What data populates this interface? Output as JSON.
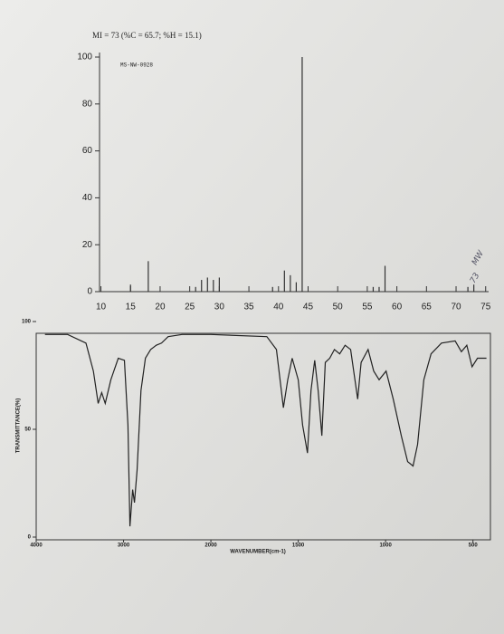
{
  "chart_data": [
    {
      "type": "bar",
      "title": "MI = 73 (%C = 65.7; %H = 15.1)",
      "subtitle": "MS-NW-0928",
      "annotations": [
        "MW",
        "73"
      ],
      "x": [
        15,
        18,
        26,
        27,
        28,
        29,
        30,
        39,
        41,
        42,
        43,
        44,
        56,
        57,
        58,
        72,
        73
      ],
      "values": [
        3,
        13,
        2,
        5,
        6,
        5,
        6,
        2,
        9,
        7,
        4,
        100,
        2,
        2,
        11,
        2,
        3
      ],
      "color": "#333333",
      "xlim": [
        9,
        75.5
      ],
      "xticks": [
        10,
        15,
        20,
        25,
        30,
        35,
        40,
        45,
        50,
        55,
        60,
        65,
        70,
        75
      ],
      "ylim": [
        0,
        100
      ],
      "yticks": [
        0,
        20,
        40,
        60,
        80,
        100
      ]
    },
    {
      "type": "line",
      "x_label": "WAVENUMBER(cm-1)",
      "y_label": "TRANSMITTANCE(%)",
      "x": [
        3900,
        3640,
        3430,
        3345,
        3290,
        3250,
        3210,
        3145,
        3060,
        2990,
        2950,
        2927,
        2896,
        2875,
        2845,
        2800,
        2750,
        2690,
        2625,
        2565,
        2490,
        2330,
        2000,
        1680,
        1625,
        1585,
        1560,
        1535,
        1500,
        1475,
        1447,
        1427,
        1406,
        1386,
        1365,
        1345,
        1320,
        1293,
        1263,
        1232,
        1200,
        1160,
        1140,
        1100,
        1068,
        1037,
        997,
        956,
        910,
        874,
        843,
        817,
        781,
        740,
        680,
        602,
        566,
        535,
        505,
        474,
        423
      ],
      "values": [
        94,
        94,
        90,
        77,
        62,
        67,
        62,
        73,
        83,
        82,
        52,
        5,
        22,
        16,
        31,
        68,
        83,
        87,
        89,
        90,
        93,
        94,
        94,
        93,
        87,
        60,
        73,
        83,
        73,
        52,
        39,
        68,
        82,
        68,
        47,
        81,
        83,
        87,
        85,
        89,
        87,
        64,
        81,
        87,
        77,
        73,
        77,
        64,
        47,
        35,
        33,
        43,
        73,
        85,
        90,
        91,
        86,
        89,
        79,
        83,
        83
      ],
      "color": "#222222",
      "x_scale_break": 2000,
      "xlim": [
        4000,
        400
      ],
      "xticks": [
        4000,
        3000,
        2000,
        1500,
        1000,
        500
      ],
      "ylim": [
        0,
        100
      ],
      "yticks": [
        0,
        50,
        100
      ]
    }
  ]
}
